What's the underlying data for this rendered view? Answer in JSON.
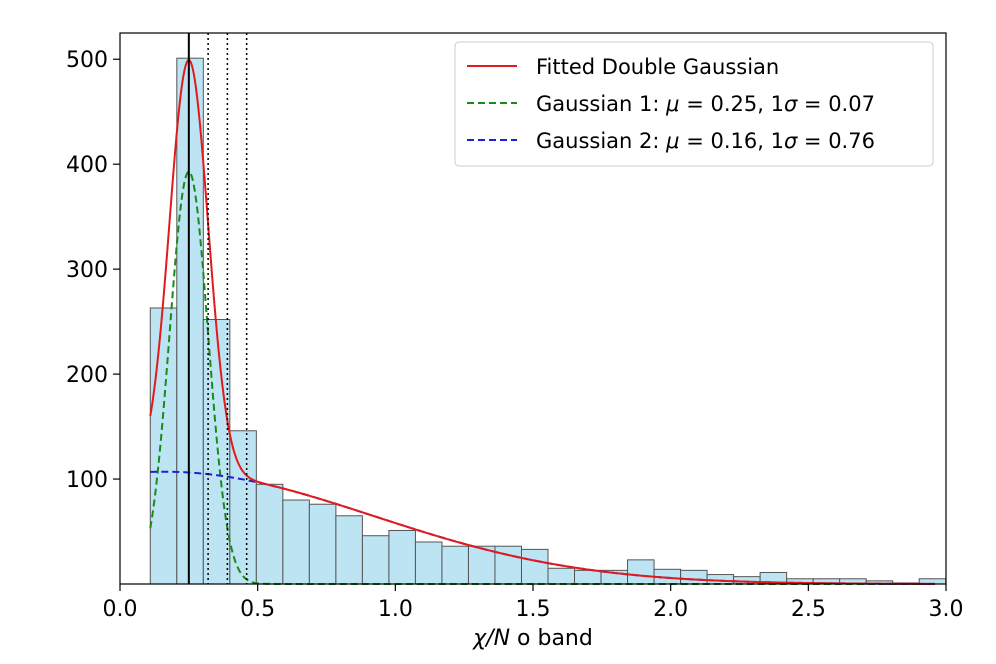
{
  "chart_data": {
    "type": "bar",
    "xlabel": "χ/N o band",
    "xlim": [
      0.0,
      3.0
    ],
    "ylim": [
      0,
      525
    ],
    "x_ticks": [
      "0.0",
      "0.5",
      "1.0",
      "1.5",
      "2.0",
      "2.5",
      "3.0"
    ],
    "y_ticks": [
      "100",
      "200",
      "300",
      "400",
      "500"
    ],
    "grid": false,
    "legend_position": "top-right",
    "histogram": {
      "bin_width": 0.0963,
      "bin_starts": [
        0.11,
        0.2063,
        0.3026,
        0.3989,
        0.4952,
        0.5915,
        0.6878,
        0.7841,
        0.8804,
        0.9767,
        1.073,
        1.1693,
        1.2656,
        1.3619,
        1.4582,
        1.5545,
        1.6508,
        1.7471,
        1.8434,
        1.9397,
        2.036,
        2.1323,
        2.2286,
        2.3249,
        2.4212,
        2.5175,
        2.6138,
        2.7101,
        2.8064,
        2.9027
      ],
      "counts": [
        263,
        501,
        252,
        146,
        95,
        80,
        76,
        65,
        46,
        51,
        40,
        36,
        36,
        36,
        33,
        15,
        13,
        13,
        23,
        14,
        13,
        9,
        7,
        11,
        5,
        5,
        5,
        3,
        1,
        5
      ],
      "fill": "#bde4f2",
      "edge": "#555555"
    },
    "series": [
      {
        "name": "Fitted Double Gaussian",
        "color": "#e31a1c",
        "style": "solid"
      },
      {
        "name": "Gaussian 1",
        "label_text": "Gaussian 1: μ = 0.25, 1σ = 0.07",
        "mu": 0.25,
        "sigma": 0.07,
        "peak": 393,
        "color": "#1a8a1a",
        "style": "dashed"
      },
      {
        "name": "Gaussian 2",
        "label_text": "Gaussian 2: μ = 0.16, 1σ = 0.76",
        "mu": 0.16,
        "sigma": 0.76,
        "peak": 107,
        "color": "#1f1fd6",
        "style": "dashed"
      }
    ],
    "vertical_lines": [
      {
        "x": 0.25,
        "style": "solid",
        "color": "#000000"
      },
      {
        "x": 0.32,
        "style": "dotted",
        "color": "#000000"
      },
      {
        "x": 0.39,
        "style": "dotted",
        "color": "#000000"
      },
      {
        "x": 0.46,
        "style": "dotted",
        "color": "#000000"
      }
    ]
  }
}
